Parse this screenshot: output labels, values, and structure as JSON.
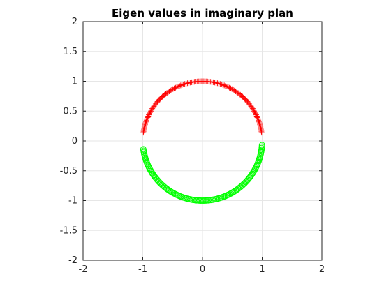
{
  "chart_data": {
    "type": "scatter",
    "title": "Eigen values in imaginary plan",
    "xlabel": "",
    "ylabel": "",
    "xlim": [
      -2,
      2
    ],
    "ylim": [
      -2,
      2
    ],
    "xticks": [
      -2,
      -1,
      0,
      1,
      2
    ],
    "yticks": [
      -2,
      -1.5,
      -1,
      -0.5,
      0,
      0.5,
      1,
      1.5,
      2
    ],
    "grid": true,
    "series": [
      {
        "marker": "plus",
        "color": "#ff0000",
        "angle_start_deg": 8,
        "angle_end_deg": 172,
        "points": 120
      },
      {
        "marker": "circle",
        "color": "#00ff00",
        "angle_start_deg": 188,
        "angle_end_deg": 356,
        "points": 120
      }
    ]
  }
}
